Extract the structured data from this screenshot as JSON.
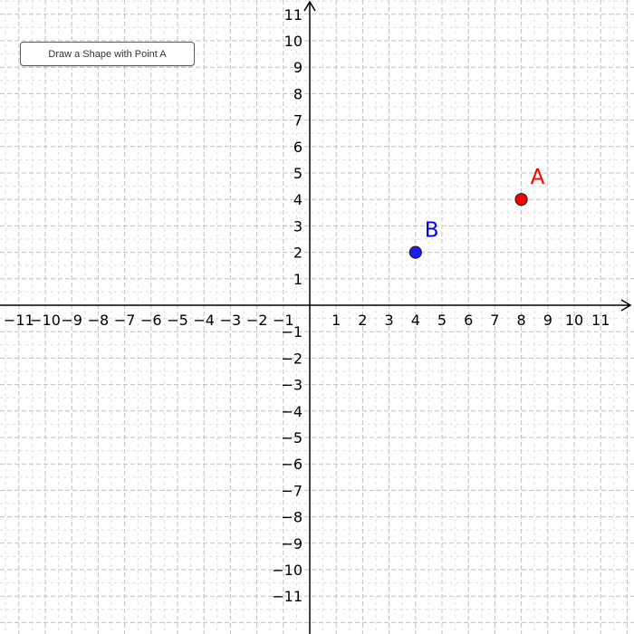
{
  "toolbar": {
    "draw_button_label": "Draw a Shape with Point A"
  },
  "graph": {
    "x_tick_labels": [
      "−11",
      "−10",
      "−9",
      "−8",
      "−7",
      "−6",
      "−5",
      "−4",
      "−3",
      "−2",
      "−1",
      "1",
      "2",
      "3",
      "4",
      "5",
      "6",
      "7",
      "8",
      "9",
      "10",
      "11"
    ],
    "y_tick_labels": [
      "11",
      "10",
      "9",
      "8",
      "7",
      "6",
      "5",
      "4",
      "3",
      "2",
      "1",
      "−1",
      "−2",
      "−3",
      "−4",
      "−5",
      "−6",
      "−7",
      "−8",
      "−9",
      "−10",
      "−11"
    ],
    "grid": "dashed",
    "points": [
      {
        "name": "A",
        "x": 8,
        "y": 4,
        "color": "#ff0000",
        "label_color": "#ff0000"
      },
      {
        "name": "B",
        "x": 4,
        "y": 2,
        "color": "#1a1aff",
        "label_color": "#0000ff"
      }
    ]
  }
}
